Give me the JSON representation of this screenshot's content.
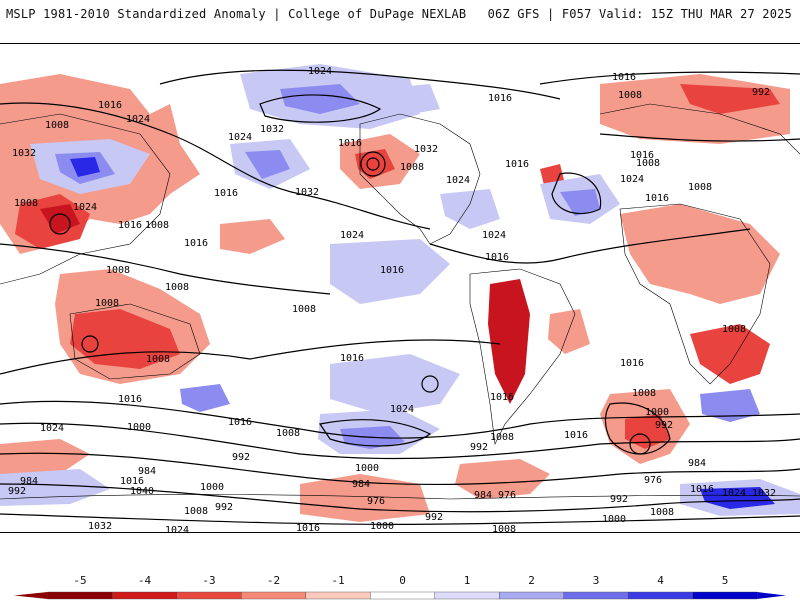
{
  "header": {
    "left_title": "MSLP 1981-2010 Standardized Anomaly | College of DuPage NEXLAB",
    "right_title": "06Z GFS | F057 Valid: 15Z THU MAR 27 2025"
  },
  "map": {
    "isobar_labels": [
      "992",
      "1000",
      "1008",
      "1016",
      "1024",
      "1032",
      "1040",
      "984",
      "976"
    ],
    "colors": {
      "neg_strong": "#c8141e",
      "neg_mid": "#e8433f",
      "neg_light": "#f59b8c",
      "pos_light": "#c8c8f5",
      "pos_mid": "#8c8cf0",
      "pos_strong": "#2828e6",
      "contour": "#000000",
      "coast": "#000000"
    }
  },
  "colorbar": {
    "tick_labels": [
      "-5",
      "-4",
      "-3",
      "-2",
      "-1",
      "0",
      "1",
      "2",
      "3",
      "4",
      "5"
    ],
    "colors": [
      "#8b0000",
      "#d11a1a",
      "#e84a40",
      "#f58a78",
      "#fbc8bc",
      "#ffffff",
      "#dcdcfa",
      "#aaaaf2",
      "#6e6eea",
      "#3c3ce6",
      "#0000c8"
    ]
  }
}
